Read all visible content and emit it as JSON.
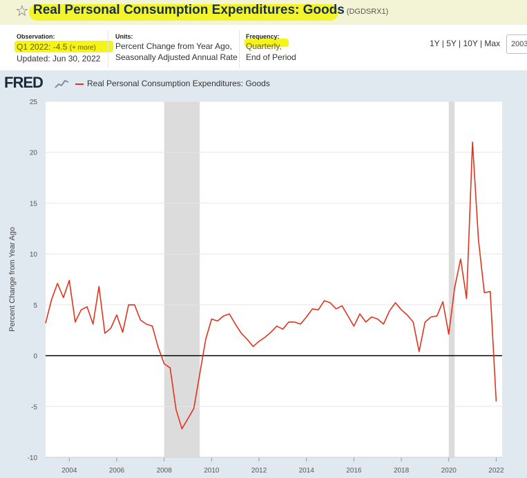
{
  "header": {
    "title": "Real Personal Consumption Expenditures: Goods",
    "series_id": "(DGDSRX1)",
    "observation_label": "Observation:",
    "observation_value": "Q1 2022: -4.5",
    "observation_more": "(+ more)",
    "updated": "Updated: Jun 30, 2022",
    "units_label": "Units:",
    "units_line1": "Percent Change from Year Ago,",
    "units_line2": "Seasonally Adjusted Annual Rate",
    "frequency_label": "Frequency:",
    "frequency_line1": "Quarterly,",
    "frequency_line2": "End of Period",
    "ranges": "1Y | 5Y | 10Y | Max",
    "range_start": "2003"
  },
  "logo": "FRED",
  "colors": {
    "line": "#e2321c",
    "recession": "#dcdcdc",
    "highlight": "#f4f41a",
    "plot_bg": "#ffffff",
    "panel_bg": "#e1e9f0"
  },
  "chart_data": {
    "type": "line",
    "ylabel": "Percent Change from Year Ago",
    "ylim": [
      -10,
      25
    ],
    "yticks": [
      -10,
      -5,
      0,
      5,
      10,
      15,
      20,
      25
    ],
    "xlim": [
      2003.0,
      2022.25
    ],
    "xticks": [
      2004,
      2006,
      2008,
      2010,
      2012,
      2014,
      2016,
      2018,
      2020,
      2022
    ],
    "grid": true,
    "legend_position": "top-left",
    "series": [
      {
        "name": "Real Personal Consumption Expenditures: Goods",
        "x": [
          2003.0,
          2003.25,
          2003.5,
          2003.75,
          2004.0,
          2004.25,
          2004.5,
          2004.75,
          2005.0,
          2005.25,
          2005.5,
          2005.75,
          2006.0,
          2006.25,
          2006.5,
          2006.75,
          2007.0,
          2007.25,
          2007.5,
          2007.75,
          2008.0,
          2008.25,
          2008.5,
          2008.75,
          2009.0,
          2009.25,
          2009.5,
          2009.75,
          2010.0,
          2010.25,
          2010.5,
          2010.75,
          2011.0,
          2011.25,
          2011.5,
          2011.75,
          2012.0,
          2012.25,
          2012.5,
          2012.75,
          2013.0,
          2013.25,
          2013.5,
          2013.75,
          2014.0,
          2014.25,
          2014.5,
          2014.75,
          2015.0,
          2015.25,
          2015.5,
          2015.75,
          2016.0,
          2016.25,
          2016.5,
          2016.75,
          2017.0,
          2017.25,
          2017.5,
          2017.75,
          2018.0,
          2018.25,
          2018.5,
          2018.75,
          2019.0,
          2019.25,
          2019.5,
          2019.75,
          2020.0,
          2020.25,
          2020.5,
          2020.75,
          2021.0,
          2021.25,
          2021.5,
          2021.75,
          2022.0
        ],
        "values": [
          3.2,
          5.5,
          7.1,
          5.7,
          7.4,
          3.3,
          4.5,
          4.8,
          3.1,
          6.8,
          2.2,
          2.7,
          4.0,
          2.3,
          5.0,
          5.0,
          3.5,
          3.1,
          2.9,
          0.8,
          -0.8,
          -1.2,
          -5.3,
          -7.2,
          -6.2,
          -5.2,
          -1.8,
          1.6,
          3.6,
          3.4,
          3.9,
          4.1,
          3.1,
          2.2,
          1.6,
          0.9,
          1.4,
          1.8,
          2.3,
          2.9,
          2.6,
          3.3,
          3.3,
          3.1,
          3.8,
          4.6,
          4.5,
          5.4,
          5.2,
          4.6,
          4.9,
          3.9,
          2.9,
          4.1,
          3.3,
          3.8,
          3.6,
          3.1,
          4.4,
          5.2,
          4.5,
          4.0,
          3.3,
          0.4,
          3.3,
          3.8,
          3.9,
          5.3,
          2.1,
          6.7,
          9.5,
          5.6,
          21.0,
          11.4,
          6.2,
          6.3,
          -4.5
        ]
      }
    ],
    "recessions": [
      [
        2008.0,
        2009.5
      ],
      [
        2020.0,
        2020.25
      ]
    ]
  }
}
